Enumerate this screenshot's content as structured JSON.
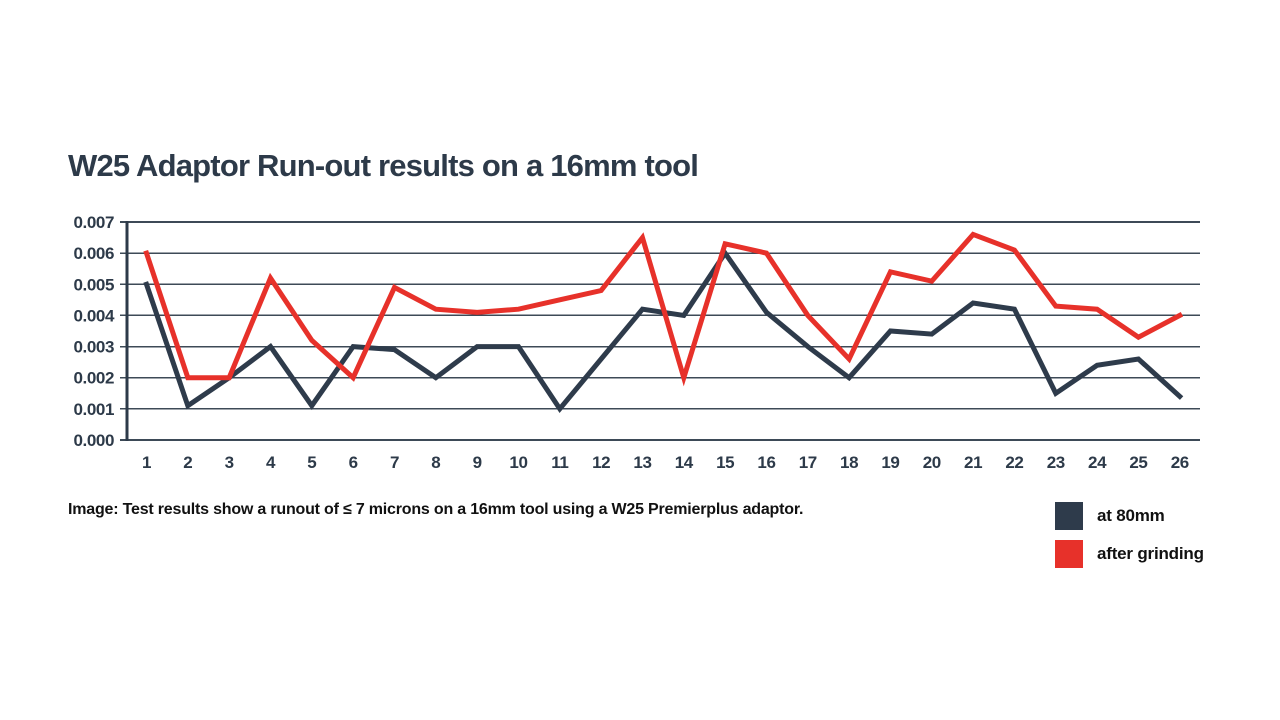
{
  "caption": {
    "text": "Image: Test results show a runout of ≤ 7 microns on a 16mm tool using a W25 Premierplus adaptor."
  },
  "chart_data": {
    "type": "line",
    "title": "W25 Adaptor Run-out results on a 16mm tool",
    "title_color": "#2d3a49",
    "axis_color": "#2d3a49",
    "grid_color": "#3d4a57",
    "grid": true,
    "legend_position": "bottom-right",
    "xlabel": "",
    "ylabel": "",
    "ylim": [
      0,
      0.007
    ],
    "y_ticks": [
      "0.000",
      "0.001",
      "0.002",
      "0.003",
      "0.004",
      "0.005",
      "0.006",
      "0.007"
    ],
    "x": [
      1,
      2,
      3,
      4,
      5,
      6,
      7,
      8,
      9,
      10,
      11,
      12,
      13,
      14,
      15,
      16,
      17,
      18,
      19,
      20,
      21,
      22,
      23,
      24,
      25,
      26
    ],
    "series": [
      {
        "name": "at 80mm",
        "color": "#2e3b4b",
        "values": [
          0.005,
          0.0011,
          0.002,
          0.003,
          0.0011,
          0.003,
          0.0029,
          0.002,
          0.003,
          0.003,
          0.001,
          0.0026,
          0.0042,
          0.004,
          0.006,
          0.0041,
          0.003,
          0.002,
          0.0035,
          0.0034,
          0.0044,
          0.0042,
          0.0015,
          0.0024,
          0.0026,
          0.0014
        ]
      },
      {
        "name": "after grinding",
        "color": "#e7312a",
        "values": [
          0.006,
          0.002,
          0.002,
          0.0052,
          0.0032,
          0.002,
          0.0049,
          0.0042,
          0.0041,
          0.0042,
          0.0045,
          0.0048,
          0.0065,
          0.002,
          0.0063,
          0.006,
          0.004,
          0.0026,
          0.0054,
          0.0051,
          0.0066,
          0.0061,
          0.0043,
          0.0042,
          0.0033,
          0.004
        ]
      }
    ]
  }
}
